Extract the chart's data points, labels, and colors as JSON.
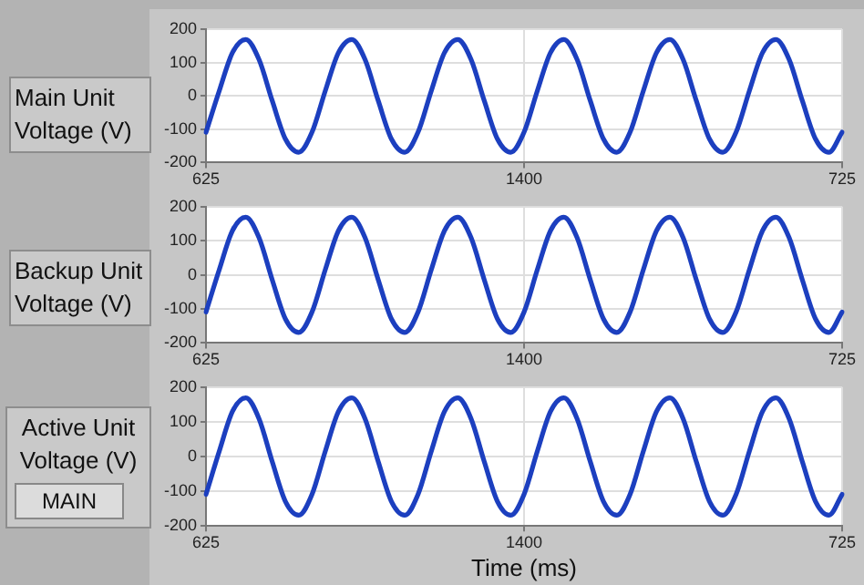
{
  "chart_data": [
    {
      "type": "line",
      "ylabel": "Main Unit Voltage (V)",
      "grid": true,
      "marker": "none",
      "categories": [
        "625",
        null,
        null,
        null,
        null,
        null,
        null,
        null,
        null,
        null,
        null,
        null,
        null,
        null,
        null,
        null,
        null,
        null,
        null,
        null,
        null,
        null,
        null,
        null,
        "1400",
        null,
        null,
        null,
        null,
        null,
        null,
        null,
        null,
        null,
        null,
        null,
        null,
        null,
        null,
        null,
        null,
        null,
        null,
        null,
        null,
        null,
        null,
        null,
        "725"
      ],
      "series": [
        {
          "color": "#1c3fbf",
          "values": [
            -109,
            15,
            130,
            169,
            109,
            -15,
            -130,
            -169,
            -109,
            15,
            130,
            169,
            109,
            -15,
            -130,
            -169,
            -109,
            15,
            130,
            169,
            109,
            -15,
            -130,
            -169,
            -109,
            15,
            130,
            169,
            109,
            -15,
            -130,
            -169,
            -109,
            15,
            130,
            169,
            109,
            -15,
            -130,
            -169,
            -109,
            15,
            130,
            169,
            109,
            -15,
            -130,
            -169,
            -109
          ]
        }
      ],
      "ylim": [
        -200,
        200
      ],
      "yticks": [
        -200,
        -100,
        0,
        100,
        200
      ]
    },
    {
      "type": "line",
      "ylabel": "Backup Unit Voltage (V)",
      "grid": true,
      "marker": "none",
      "categories": [
        "625",
        null,
        null,
        null,
        null,
        null,
        null,
        null,
        null,
        null,
        null,
        null,
        null,
        null,
        null,
        null,
        null,
        null,
        null,
        null,
        null,
        null,
        null,
        null,
        "1400",
        null,
        null,
        null,
        null,
        null,
        null,
        null,
        null,
        null,
        null,
        null,
        null,
        null,
        null,
        null,
        null,
        null,
        null,
        null,
        null,
        null,
        null,
        null,
        "725"
      ],
      "series": [
        {
          "color": "#1c3fbf",
          "values": [
            -109,
            15,
            130,
            169,
            109,
            -15,
            -130,
            -169,
            -109,
            15,
            130,
            169,
            109,
            -15,
            -130,
            -169,
            -109,
            15,
            130,
            169,
            109,
            -15,
            -130,
            -169,
            -109,
            15,
            130,
            169,
            109,
            -15,
            -130,
            -169,
            -109,
            15,
            130,
            169,
            109,
            -15,
            -130,
            -169,
            -109,
            15,
            130,
            169,
            109,
            -15,
            -130,
            -169,
            -109
          ]
        }
      ],
      "ylim": [
        -200,
        200
      ],
      "yticks": [
        -200,
        -100,
        0,
        100,
        200
      ]
    },
    {
      "type": "line",
      "ylabel": "Active Unit Voltage (V)",
      "xlabel": "Time (ms)",
      "annotations": [
        "MAIN"
      ],
      "grid": true,
      "marker": "none",
      "categories": [
        "625",
        null,
        null,
        null,
        null,
        null,
        null,
        null,
        null,
        null,
        null,
        null,
        null,
        null,
        null,
        null,
        null,
        null,
        null,
        null,
        null,
        null,
        null,
        null,
        "1400",
        null,
        null,
        null,
        null,
        null,
        null,
        null,
        null,
        null,
        null,
        null,
        null,
        null,
        null,
        null,
        null,
        null,
        null,
        null,
        null,
        null,
        null,
        null,
        "725"
      ],
      "series": [
        {
          "color": "#1c3fbf",
          "values": [
            -109,
            15,
            130,
            169,
            109,
            -15,
            -130,
            -169,
            -109,
            15,
            130,
            169,
            109,
            -15,
            -130,
            -169,
            -109,
            15,
            130,
            169,
            109,
            -15,
            -130,
            -169,
            -109,
            15,
            130,
            169,
            109,
            -15,
            -130,
            -169,
            -109,
            15,
            130,
            169,
            109,
            -15,
            -130,
            -169,
            -109,
            15,
            130,
            169,
            109,
            -15,
            -130,
            -169,
            -109
          ]
        }
      ],
      "ylim": [
        -200,
        200
      ],
      "yticks": [
        -200,
        -100,
        0,
        100,
        200
      ]
    }
  ]
}
